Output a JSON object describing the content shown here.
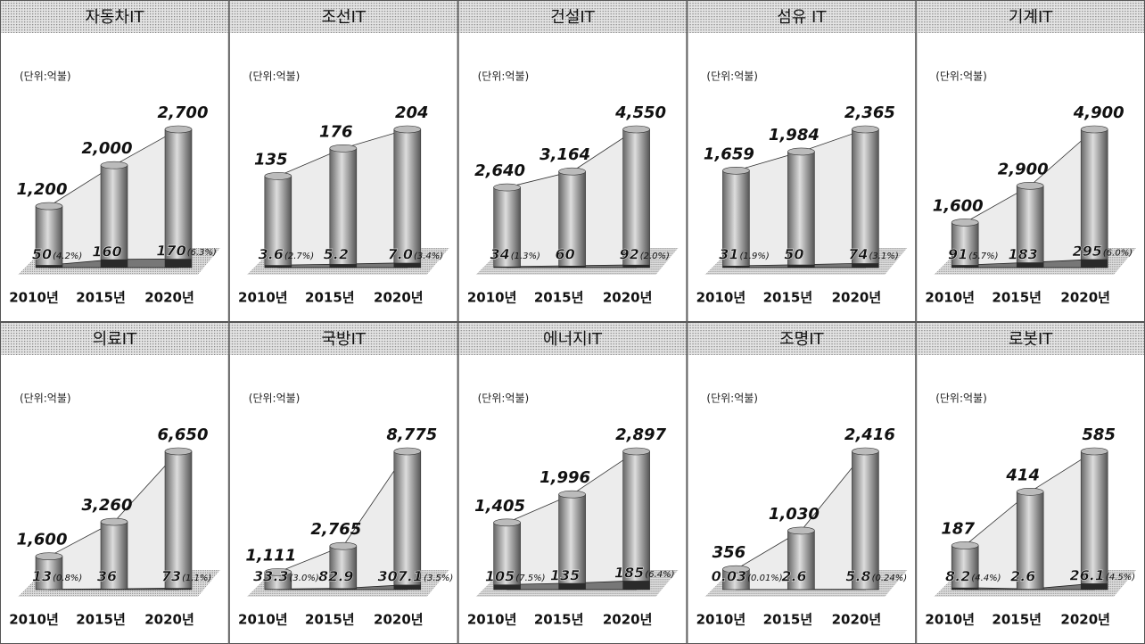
{
  "chart_data": [
    {
      "type": "cylinder",
      "title": "자동차IT",
      "subtitle": "(단위:억불)",
      "categories": [
        "2010년",
        "2015년",
        "2020년"
      ],
      "series": [
        {
          "color": "#9a9a9a",
          "values": [
            1200,
            2000,
            2700
          ],
          "value_labels": [
            "1,200",
            "2,000",
            "2,700"
          ]
        },
        {
          "color": "#2a2a2a",
          "values": [
            50,
            160,
            170
          ]
        }
      ],
      "shares": [
        4.2,
        null,
        6.3
      ],
      "share_labels": [
        "(4.2%)",
        null,
        "(6.3%)"
      ]
    },
    {
      "type": "cylinder",
      "title": "조선IT",
      "subtitle": "(단위:억불)",
      "categories": [
        "2010년",
        "2015년",
        "2020년"
      ],
      "series": [
        {
          "color": "#9a9a9a",
          "values": [
            135,
            176,
            204
          ]
        },
        {
          "color": "#2a2a2a",
          "values": [
            3.6,
            5.2,
            7.0
          ],
          "value_labels": [
            "3.6",
            "5.2",
            "7.0"
          ]
        }
      ],
      "shares": [
        2.7,
        null,
        3.4
      ],
      "share_labels": [
        "(2.7%)",
        null,
        "(3.4%)"
      ]
    },
    {
      "type": "cylinder",
      "title": "건설IT",
      "subtitle": "(단위:억불)",
      "categories": [
        "2010년",
        "2015년",
        "2020년"
      ],
      "series": [
        {
          "color": "#9a9a9a",
          "values": [
            2640,
            3164,
            4550
          ],
          "value_labels": [
            "2,640",
            "3,164",
            "4,550"
          ]
        },
        {
          "color": "#2a2a2a",
          "values": [
            34,
            60,
            92
          ]
        }
      ],
      "shares": [
        1.3,
        null,
        2.0
      ],
      "share_labels": [
        "(1.3%)",
        null,
        "(2.0%)"
      ]
    },
    {
      "type": "cylinder",
      "title": "섬유 IT",
      "subtitle": "(단위:억불)",
      "categories": [
        "2010년",
        "2015년",
        "2020년"
      ],
      "series": [
        {
          "color": "#9a9a9a",
          "values": [
            1659,
            1984,
            2365
          ],
          "value_labels": [
            "1,659",
            "1,984",
            "2,365"
          ]
        },
        {
          "color": "#2a2a2a",
          "values": [
            31,
            50,
            74
          ]
        }
      ],
      "shares": [
        1.9,
        null,
        3.1
      ],
      "share_labels": [
        "(1.9%)",
        null,
        "(3.1%)"
      ]
    },
    {
      "type": "cylinder",
      "title": "기계IT",
      "subtitle": "(단위:억불)",
      "categories": [
        "2010년",
        "2015년",
        "2020년"
      ],
      "series": [
        {
          "color": "#9a9a9a",
          "values": [
            1600,
            2900,
            4900
          ],
          "value_labels": [
            "1,600",
            "2,900",
            "4,900"
          ]
        },
        {
          "color": "#2a2a2a",
          "values": [
            91,
            183,
            295
          ]
        }
      ],
      "shares": [
        5.7,
        null,
        6.0
      ],
      "share_labels": [
        "(5.7%)",
        null,
        "(6.0%)"
      ]
    },
    {
      "type": "cylinder",
      "title": "의료IT",
      "subtitle": "(단위:억불)",
      "categories": [
        "2010년",
        "2015년",
        "2020년"
      ],
      "series": [
        {
          "color": "#9a9a9a",
          "values": [
            1600,
            3260,
            6650
          ],
          "value_labels": [
            "1,600",
            "3,260",
            "6,650"
          ]
        },
        {
          "color": "#2a2a2a",
          "values": [
            13,
            36,
            73
          ]
        }
      ],
      "shares": [
        0.8,
        null,
        1.1
      ],
      "share_labels": [
        "(0.8%)",
        null,
        "(1.1%)"
      ]
    },
    {
      "type": "cylinder",
      "title": "국방IT",
      "subtitle": "(단위:억불)",
      "categories": [
        "2010년",
        "2015년",
        "2020년"
      ],
      "series": [
        {
          "color": "#9a9a9a",
          "values": [
            1111,
            2765,
            8775
          ],
          "value_labels": [
            "1,111",
            "2,765",
            "8,775"
          ]
        },
        {
          "color": "#2a2a2a",
          "values": [
            33.3,
            82.9,
            307.1
          ]
        }
      ],
      "shares": [
        3.0,
        null,
        3.5
      ],
      "share_labels": [
        "(3.0%)",
        null,
        "(3.5%)"
      ]
    },
    {
      "type": "cylinder",
      "title": "에너지IT",
      "subtitle": "(단위:억불)",
      "categories": [
        "2010년",
        "2015년",
        "2020년"
      ],
      "series": [
        {
          "color": "#9a9a9a",
          "values": [
            1405,
            1996,
            2897
          ],
          "value_labels": [
            "1,405",
            "1,996",
            "2,897"
          ]
        },
        {
          "color": "#2a2a2a",
          "values": [
            105,
            135,
            185
          ]
        }
      ],
      "shares": [
        7.5,
        null,
        6.4
      ],
      "share_labels": [
        "(7.5%)",
        null,
        "(6.4%)"
      ]
    },
    {
      "type": "cylinder",
      "title": "조명IT",
      "subtitle": "(단위:억불)",
      "categories": [
        "2010년",
        "2015년",
        "2020년"
      ],
      "series": [
        {
          "color": "#9a9a9a",
          "values": [
            356,
            1030,
            2416
          ],
          "value_labels": [
            "356",
            "1,030",
            "2,416"
          ]
        },
        {
          "color": "#2a2a2a",
          "values": [
            0.03,
            2.6,
            5.8
          ]
        }
      ],
      "shares": [
        0.01,
        null,
        0.24
      ],
      "share_labels": [
        "(0.01%)",
        null,
        "(0.24%)"
      ]
    },
    {
      "type": "cylinder",
      "title": "로봇IT",
      "subtitle": "(단위:억불)",
      "categories": [
        "2010년",
        "2015년",
        "2020년"
      ],
      "series": [
        {
          "color": "#9a9a9a",
          "values": [
            187,
            414,
            585
          ]
        },
        {
          "color": "#2a2a2a",
          "values": [
            8.2,
            2.6,
            26.1
          ]
        }
      ],
      "shares": [
        4.4,
        null,
        4.5
      ],
      "share_labels": [
        "(4.4%)",
        null,
        "(4.5%)"
      ]
    }
  ]
}
